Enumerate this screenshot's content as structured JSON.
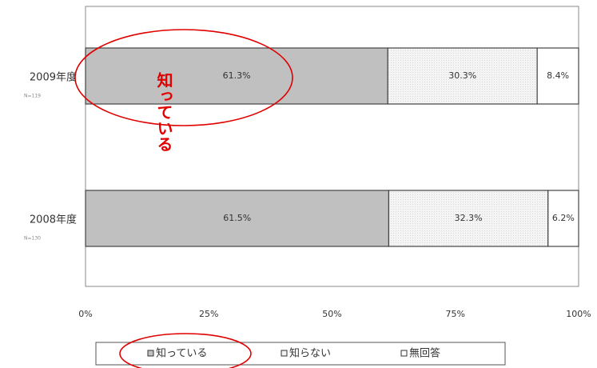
{
  "chart_data": {
    "type": "stacked_bar_horizontal",
    "categories": [
      "2009年度",
      "2008年度"
    ],
    "category_notes": [
      "N=119",
      "N=130"
    ],
    "series": [
      {
        "name": "知っている",
        "color": "#c0c0c0",
        "values": [
          61.3,
          61.5
        ],
        "value_labels": [
          "61.3%",
          "61.5%"
        ]
      },
      {
        "name": "知らない",
        "color": "#f2f2f2",
        "values": [
          30.3,
          32.3
        ],
        "value_labels": [
          "30.3%",
          "32.3%"
        ]
      },
      {
        "name": "無回答",
        "color": "#ffffff",
        "values": [
          8.4,
          6.2
        ],
        "value_labels": [
          "8.4%",
          "6.2%"
        ]
      }
    ],
    "xlim": [
      0,
      100
    ],
    "xticks": [
      {
        "value": 0,
        "label": "0%"
      },
      {
        "value": 25,
        "label": "25%"
      },
      {
        "value": 50,
        "label": "50%"
      },
      {
        "value": 75,
        "label": "75%"
      },
      {
        "value": 100,
        "label": "100%"
      }
    ],
    "annotation": "知っている",
    "legend": "bottom"
  }
}
